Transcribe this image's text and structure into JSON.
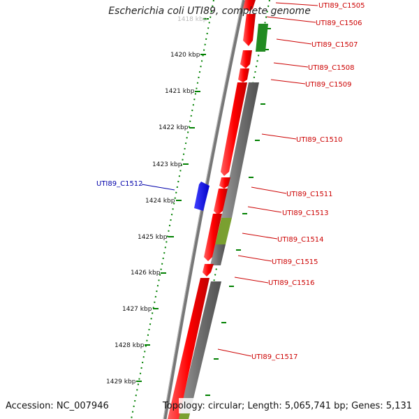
{
  "title": "Escherichia coli UTI89, complete genome",
  "footer": {
    "accession": "Accession: NC_007946",
    "summary": "Topology: circular; Length: 5,065,741 bp; Genes: 5,131"
  },
  "colors": {
    "forward_cds": "#ff0000",
    "reverse_cds": "#0000ff",
    "backbone": "#888888",
    "green_feature": "#228b22",
    "olive_feature": "#7aa030",
    "grey_feature": "#707070",
    "tick": "#008000",
    "gene_label": "#cc0000",
    "selected_label": "#0000aa"
  },
  "scale": {
    "ticks": [
      {
        "label": "1418 kbp"
      },
      {
        "label": "1420 kbp"
      },
      {
        "label": "1421 kbp"
      },
      {
        "label": "1422 kbp"
      },
      {
        "label": "1423 kbp"
      },
      {
        "label": "1424 kbp"
      },
      {
        "label": "1425 kbp"
      },
      {
        "label": "1426 kbp"
      },
      {
        "label": "1427 kbp"
      },
      {
        "label": "1428 kbp"
      },
      {
        "label": "1429 kbp"
      }
    ]
  },
  "genes": [
    {
      "label": "UTI89_C1505",
      "strand": "forward"
    },
    {
      "label": "UTI89_C1506",
      "strand": "forward"
    },
    {
      "label": "UTI89_C1507",
      "strand": "forward"
    },
    {
      "label": "UTI89_C1508",
      "strand": "forward"
    },
    {
      "label": "UTI89_C1509",
      "strand": "forward"
    },
    {
      "label": "UTI89_C1510",
      "strand": "forward"
    },
    {
      "label": "UTI89_C1511",
      "strand": "forward"
    },
    {
      "label": "UTI89_C1512",
      "strand": "reverse"
    },
    {
      "label": "UTI89_C1513",
      "strand": "forward"
    },
    {
      "label": "UTI89_C1514",
      "strand": "forward"
    },
    {
      "label": "UTI89_C1515",
      "strand": "forward"
    },
    {
      "label": "UTI89_C1516",
      "strand": "forward"
    },
    {
      "label": "UTI89_C1517",
      "strand": "forward"
    }
  ]
}
